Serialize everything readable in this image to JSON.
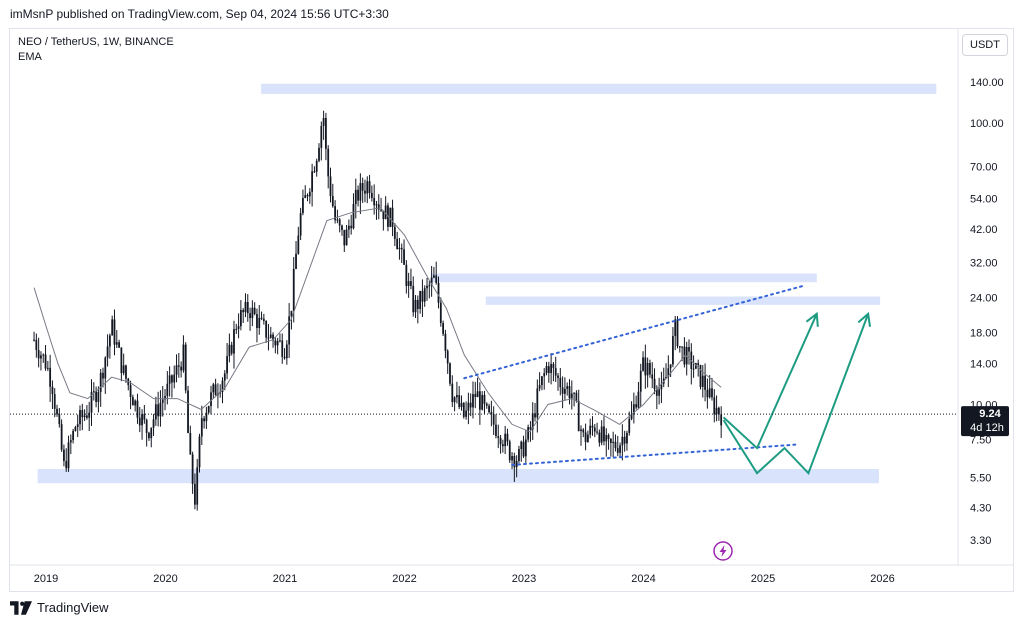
{
  "header": {
    "publish_text": "imMsnP published on TradingView.com, Sep 04, 2024 15:56 UTC+3:30"
  },
  "legend": {
    "symbol": "NEO / TetherUS, 1W, BINANCE",
    "indicator": "EMA"
  },
  "currency_button": "USDT",
  "footer": {
    "brand": "TradingView"
  },
  "chart_data": {
    "type": "candlestick",
    "symbol": "NEO / TetherUS",
    "interval": "1W",
    "exchange": "BINANCE",
    "y_scale": "log",
    "y_ticks": [
      140,
      100,
      70,
      54,
      42,
      32,
      24,
      18,
      14,
      10,
      7.5,
      5.5,
      4.3,
      3.3
    ],
    "y_tick_labels": [
      "140.00",
      "100.00",
      "70.00",
      "54.00",
      "42.00",
      "32.00",
      "24.00",
      "18.00",
      "14.00",
      "10.00",
      "7.50",
      "5.50",
      "4.30",
      "3.30"
    ],
    "x_ticks": [
      "2019",
      "2020",
      "2021",
      "2022",
      "2023",
      "2024",
      "2025",
      "2026"
    ],
    "last_price": "9.24",
    "countdown": "4d 12h",
    "price_path": [
      [
        2018.9,
        17
      ],
      [
        2019.0,
        14
      ],
      [
        2019.05,
        12
      ],
      [
        2019.15,
        6
      ],
      [
        2019.25,
        8.5
      ],
      [
        2019.35,
        9.5
      ],
      [
        2019.45,
        12
      ],
      [
        2019.55,
        19
      ],
      [
        2019.65,
        13
      ],
      [
        2019.75,
        10
      ],
      [
        2019.85,
        8
      ],
      [
        2019.95,
        10
      ],
      [
        2020.05,
        12
      ],
      [
        2020.15,
        15
      ],
      [
        2020.2,
        6.5
      ],
      [
        2020.25,
        4.5
      ],
      [
        2020.3,
        9
      ],
      [
        2020.4,
        11
      ],
      [
        2020.5,
        13
      ],
      [
        2020.6,
        20
      ],
      [
        2020.7,
        22
      ],
      [
        2020.8,
        19
      ],
      [
        2020.9,
        17
      ],
      [
        2021.0,
        16
      ],
      [
        2021.05,
        22
      ],
      [
        2021.12,
        45
      ],
      [
        2021.2,
        60
      ],
      [
        2021.27,
        80
      ],
      [
        2021.32,
        110
      ],
      [
        2021.35,
        70
      ],
      [
        2021.42,
        45
      ],
      [
        2021.5,
        38
      ],
      [
        2021.6,
        55
      ],
      [
        2021.7,
        62
      ],
      [
        2021.8,
        50
      ],
      [
        2021.9,
        45
      ],
      [
        2022.0,
        30
      ],
      [
        2022.08,
        22
      ],
      [
        2022.15,
        24
      ],
      [
        2022.25,
        28
      ],
      [
        2022.33,
        18
      ],
      [
        2022.4,
        11
      ],
      [
        2022.5,
        9
      ],
      [
        2022.6,
        11
      ],
      [
        2022.7,
        9
      ],
      [
        2022.8,
        8
      ],
      [
        2022.88,
        6.8
      ],
      [
        2022.95,
        6.4
      ],
      [
        2023.05,
        8
      ],
      [
        2023.12,
        11
      ],
      [
        2023.2,
        14
      ],
      [
        2023.3,
        12
      ],
      [
        2023.4,
        11
      ],
      [
        2023.5,
        7.5
      ],
      [
        2023.6,
        8.5
      ],
      [
        2023.7,
        7
      ],
      [
        2023.8,
        7.3
      ],
      [
        2023.9,
        9
      ],
      [
        2024.0,
        14
      ],
      [
        2024.1,
        12
      ],
      [
        2024.15,
        11
      ],
      [
        2024.2,
        13
      ],
      [
        2024.27,
        19
      ],
      [
        2024.3,
        16
      ],
      [
        2024.4,
        14
      ],
      [
        2024.5,
        12
      ],
      [
        2024.58,
        10
      ],
      [
        2024.65,
        9.24
      ]
    ],
    "ema_path": [
      [
        2018.9,
        26
      ],
      [
        2019.0,
        19
      ],
      [
        2019.1,
        14
      ],
      [
        2019.2,
        11
      ],
      [
        2019.35,
        10.5
      ],
      [
        2019.55,
        12.5
      ],
      [
        2019.7,
        12
      ],
      [
        2019.9,
        10.5
      ],
      [
        2020.1,
        10.5
      ],
      [
        2020.3,
        9.6
      ],
      [
        2020.5,
        11.5
      ],
      [
        2020.7,
        16
      ],
      [
        2020.9,
        17
      ],
      [
        2021.05,
        20
      ],
      [
        2021.2,
        30
      ],
      [
        2021.35,
        45
      ],
      [
        2021.55,
        48
      ],
      [
        2021.8,
        50
      ],
      [
        2022.0,
        40
      ],
      [
        2022.2,
        28
      ],
      [
        2022.35,
        22
      ],
      [
        2022.5,
        15
      ],
      [
        2022.7,
        11
      ],
      [
        2022.9,
        8.5
      ],
      [
        2023.05,
        8
      ],
      [
        2023.2,
        10
      ],
      [
        2023.4,
        10.5
      ],
      [
        2023.6,
        9.5
      ],
      [
        2023.8,
        8.5
      ],
      [
        2024.0,
        10
      ],
      [
        2024.2,
        12.5
      ],
      [
        2024.35,
        15
      ],
      [
        2024.5,
        13
      ],
      [
        2024.65,
        11.5
      ]
    ],
    "zones": [
      {
        "x1": 2020.8,
        "x2": 2026.45,
        "y_low": 127,
        "y_high": 138
      },
      {
        "x1": 2022.22,
        "x2": 2025.45,
        "y_low": 27.2,
        "y_high": 29.2
      },
      {
        "x1": 2022.68,
        "x2": 2025.98,
        "y_low": 22.6,
        "y_high": 24.2
      },
      {
        "x1": 2018.93,
        "x2": 2025.97,
        "y_low": 5.25,
        "y_high": 5.9
      }
    ],
    "trendlines": [
      {
        "x1": 2022.5,
        "y1": 12.4,
        "x2": 2025.35,
        "y2": 26.5,
        "style": "dotted"
      },
      {
        "x1": 2022.9,
        "y1": 6.1,
        "x2": 2025.27,
        "y2": 7.2,
        "style": "dotted"
      }
    ],
    "projections": [
      {
        "points": [
          [
            2024.67,
            9.0
          ],
          [
            2024.95,
            7.0
          ],
          [
            2025.45,
            21.0
          ]
        ]
      },
      {
        "points": [
          [
            2024.67,
            8.8
          ],
          [
            2024.95,
            5.7
          ],
          [
            2025.18,
            7.0
          ],
          [
            2025.38,
            5.7
          ],
          [
            2025.88,
            21.0
          ]
        ]
      }
    ],
    "colors": {
      "candles": "#131722",
      "ema": "#787b86",
      "zone": "#d9e3fb",
      "trendline": "#3463d6",
      "projection": "#1d9c82",
      "price_label_bg": "#131722",
      "lightning_icon": "#9c27b0"
    }
  }
}
